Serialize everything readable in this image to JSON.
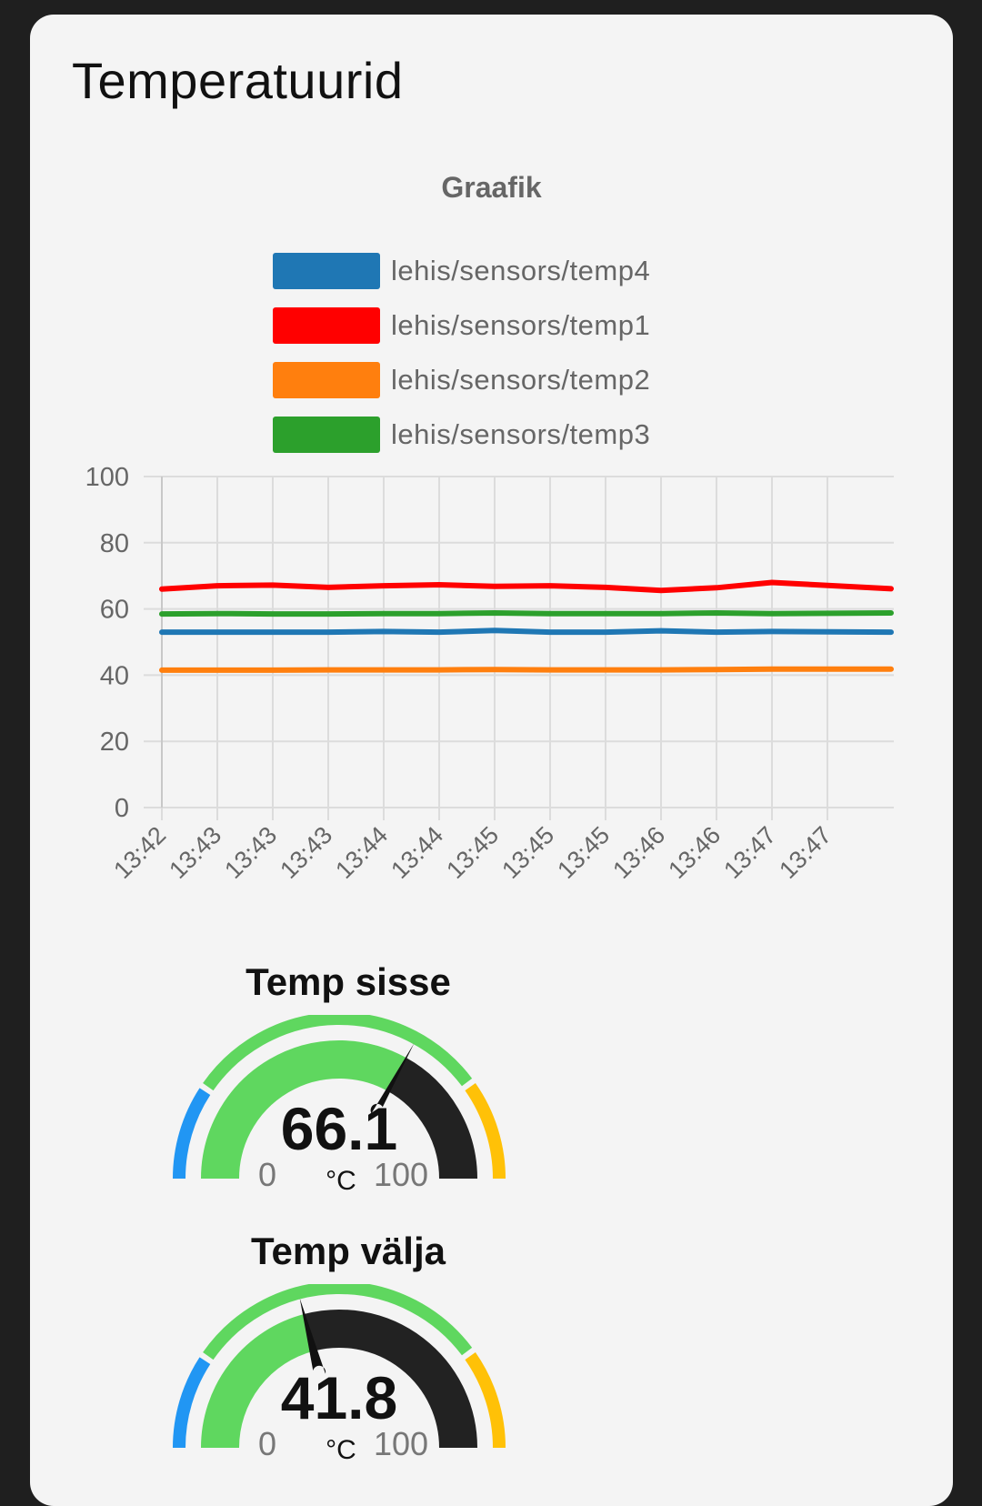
{
  "card": {
    "title": "Temperatuurid"
  },
  "chart_data": {
    "type": "line",
    "title": "Graafik",
    "ylim": [
      0,
      100
    ],
    "yticks": [
      "100",
      "80",
      "60",
      "40",
      "20",
      "0"
    ],
    "categories": [
      "13:42",
      "13:43",
      "13:43",
      "13:43",
      "13:44",
      "13:44",
      "13:45",
      "13:45",
      "13:45",
      "13:46",
      "13:46",
      "13:47",
      "13:47"
    ],
    "legend_position": "top",
    "grid": true,
    "series": [
      {
        "name": "lehis/sensors/temp4",
        "color": "#1f77b4",
        "values": [
          53,
          53,
          53,
          53,
          53.2,
          53,
          53.5,
          53,
          53,
          53.4,
          53,
          53.2,
          53
        ]
      },
      {
        "name": "lehis/sensors/temp1",
        "color": "#ff0000",
        "values": [
          66,
          67,
          67.2,
          66.5,
          67,
          67.3,
          66.8,
          67,
          66.5,
          65.6,
          66.4,
          68,
          66.1
        ]
      },
      {
        "name": "lehis/sensors/temp2",
        "color": "#ff7f0e",
        "values": [
          41.5,
          41.5,
          41.5,
          41.6,
          41.6,
          41.6,
          41.7,
          41.6,
          41.6,
          41.6,
          41.7,
          41.8,
          41.8
        ]
      },
      {
        "name": "lehis/sensors/temp3",
        "color": "#2ca02c",
        "values": [
          58.5,
          58.6,
          58.5,
          58.5,
          58.6,
          58.6,
          58.8,
          58.6,
          58.6,
          58.6,
          58.8,
          58.6,
          58.8
        ]
      }
    ]
  },
  "gauges": [
    {
      "title": "Temp sisse",
      "value": "66.1",
      "unit": "°C",
      "min": "0",
      "max": "100",
      "level": 66.1,
      "colors": {
        "low": "#2196f3",
        "mid": "#5fd75f",
        "high": "#ffc107",
        "empty": "#222222"
      }
    },
    {
      "title": "Temp välja",
      "value": "41.8",
      "unit": "°C",
      "min": "0",
      "max": "100",
      "level": 41.8,
      "colors": {
        "low": "#2196f3",
        "mid": "#5fd75f",
        "high": "#ffc107",
        "empty": "#222222"
      }
    }
  ]
}
